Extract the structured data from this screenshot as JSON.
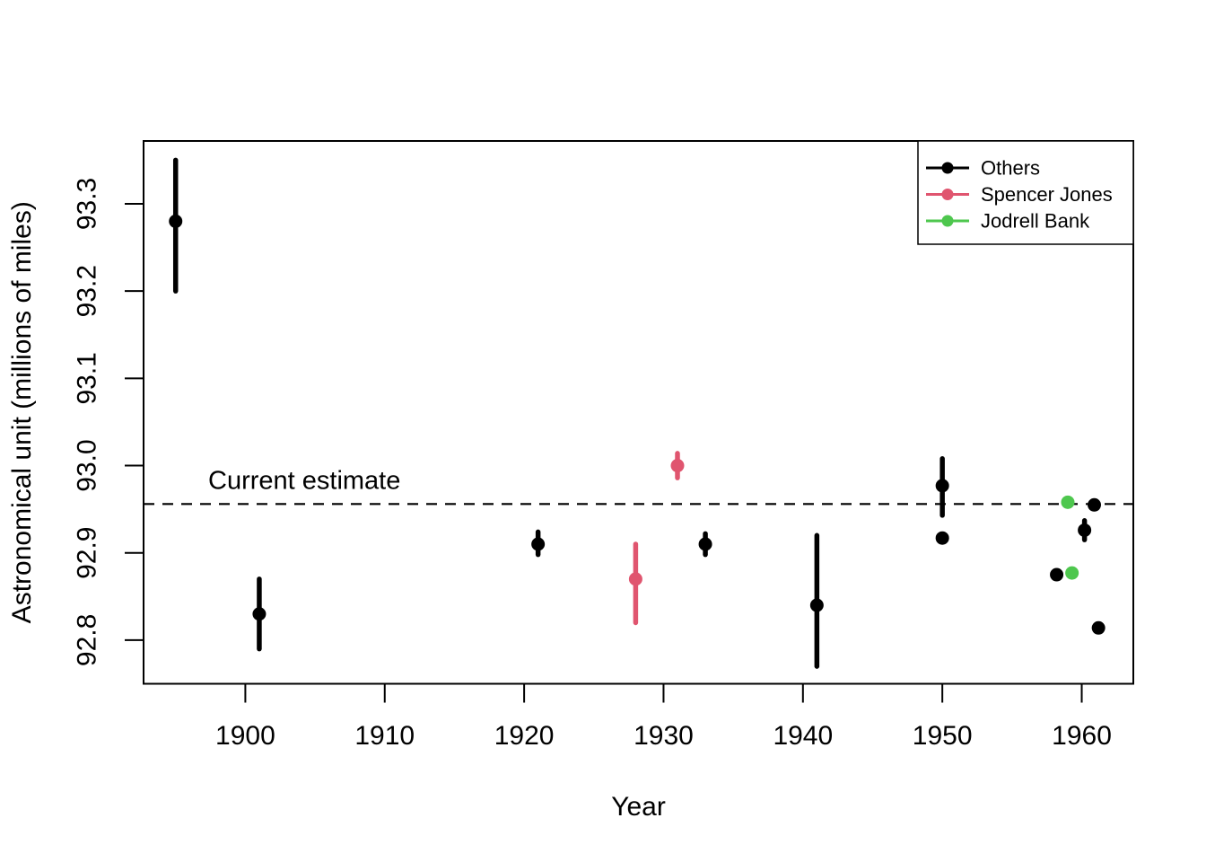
{
  "chart_data": {
    "type": "scatter",
    "title": "",
    "xlabel": "Year",
    "ylabel": "Astronomical unit (millions of miles)",
    "xlim": [
      1892.7,
      1963.7
    ],
    "ylim": [
      92.75,
      93.372
    ],
    "grid": false,
    "x_ticks": [
      {
        "value": 1900,
        "label": "1900"
      },
      {
        "value": 1910,
        "label": "1910"
      },
      {
        "value": 1920,
        "label": "1920"
      },
      {
        "value": 1930,
        "label": "1930"
      },
      {
        "value": 1940,
        "label": "1940"
      },
      {
        "value": 1950,
        "label": "1950"
      },
      {
        "value": 1960,
        "label": "1960"
      }
    ],
    "y_ticks": [
      {
        "value": 92.8,
        "label": "92.8"
      },
      {
        "value": 92.9,
        "label": "92.9"
      },
      {
        "value": 93.0,
        "label": "93.0"
      },
      {
        "value": 93.1,
        "label": "93.1"
      },
      {
        "value": 93.2,
        "label": "93.2"
      },
      {
        "value": 93.3,
        "label": "93.3"
      }
    ],
    "reference_line": {
      "value": 92.956,
      "label": "Current estimate",
      "style": "dashed",
      "color": "#000000"
    },
    "series": [
      {
        "name": "Others",
        "color": "#000000",
        "points": [
          {
            "year": 1895,
            "value": 93.28,
            "lo": 93.2,
            "hi": 93.35
          },
          {
            "year": 1901,
            "value": 92.83,
            "lo": 92.79,
            "hi": 92.87
          },
          {
            "year": 1921,
            "value": 92.91,
            "lo": 92.898,
            "hi": 92.924
          },
          {
            "year": 1933,
            "value": 92.91,
            "lo": 92.898,
            "hi": 92.922
          },
          {
            "year": 1941,
            "value": 92.84,
            "lo": 92.77,
            "hi": 92.92
          },
          {
            "year": 1950,
            "value": 92.977,
            "lo": 92.943,
            "hi": 93.008
          },
          {
            "year": 1950,
            "value": 92.917
          },
          {
            "year": 1958.2,
            "value": 92.875
          },
          {
            "year": 1960.2,
            "value": 92.926,
            "lo": 92.915,
            "hi": 92.937
          },
          {
            "year": 1960.9,
            "value": 92.955
          },
          {
            "year": 1961.2,
            "value": 92.814
          }
        ]
      },
      {
        "name": "Spencer Jones",
        "color": "#E0556F",
        "points": [
          {
            "year": 1928,
            "value": 92.87,
            "lo": 92.82,
            "hi": 92.91
          },
          {
            "year": 1931,
            "value": 93.0,
            "lo": 92.986,
            "hi": 93.014
          }
        ]
      },
      {
        "name": "Jodrell Bank",
        "color": "#4EC74E",
        "points": [
          {
            "year": 1959,
            "value": 92.958
          },
          {
            "year": 1959.3,
            "value": 92.877
          }
        ]
      }
    ],
    "legend": {
      "position": "top-right",
      "entries": [
        "Others",
        "Spencer Jones",
        "Jodrell Bank"
      ]
    }
  },
  "colors": {
    "axis": "#000000",
    "background": "#ffffff"
  }
}
